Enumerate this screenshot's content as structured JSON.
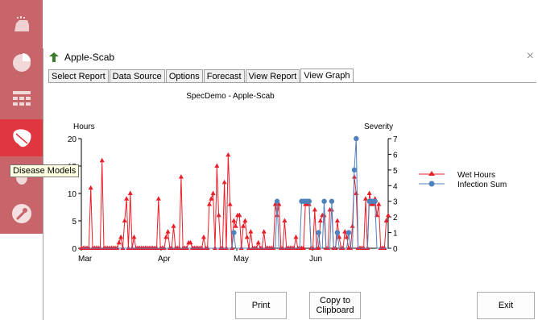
{
  "tooltip": "Disease Models",
  "window": {
    "title": "Apple-Scab",
    "close": "×",
    "tabs": [
      "Select Report",
      "Data Source",
      "Options",
      "Forecast",
      "View Report",
      "View Graph"
    ],
    "active_tab": "View Graph"
  },
  "buttons": {
    "print": "Print",
    "copy_line1": "Copy to",
    "copy_line2": "Clipboard",
    "exit": "Exit"
  },
  "colors": {
    "wet_hours": "#e8202a",
    "infection_sum": "#4f81bd",
    "sidebar": "#c8656a",
    "sidebar_active": "#e0363f"
  },
  "chart_data": {
    "type": "line",
    "title": "SpecDemo - Apple-Scab",
    "ylabel": "Hours",
    "y2label": "Severity",
    "ylim": [
      0,
      20
    ],
    "y2lim": [
      0,
      7
    ],
    "yticks": [
      0,
      5,
      10,
      15,
      20
    ],
    "y2ticks": [
      0,
      1,
      2,
      3,
      4,
      5,
      6,
      7
    ],
    "xticks": [
      "Mar",
      "Apr",
      "May",
      "Jun"
    ],
    "legend_position": "right",
    "series": [
      {
        "name": "Wet Hours",
        "axis": "left",
        "color": "#e8202a",
        "marker": "triangle",
        "values": [
          0,
          0,
          0,
          0,
          0,
          11,
          0,
          0,
          0,
          0,
          0,
          16,
          0,
          0,
          0,
          0,
          0,
          0,
          0,
          0,
          1,
          2,
          0,
          5,
          9,
          0,
          10,
          0,
          2,
          0,
          0,
          0,
          0,
          0,
          0,
          0,
          0,
          0,
          0,
          0,
          0,
          9,
          0,
          0,
          0,
          2,
          3,
          0,
          0,
          4,
          0,
          0,
          0,
          13,
          0,
          0,
          0,
          1,
          1,
          0,
          0,
          0,
          0,
          0,
          0,
          2,
          0,
          0,
          8,
          9,
          10,
          0,
          15,
          6,
          0,
          0,
          12,
          0,
          17,
          8,
          0,
          5,
          4,
          6,
          6,
          0,
          4,
          5,
          2,
          0,
          3,
          0,
          0,
          0,
          1,
          0,
          0,
          3,
          0,
          0,
          0,
          0,
          0,
          8,
          6,
          8,
          0,
          0,
          5,
          0,
          0,
          0,
          0,
          0,
          2,
          0,
          0,
          0,
          0,
          8,
          8,
          8,
          0,
          0,
          7,
          0,
          0,
          5,
          6,
          6,
          0,
          0,
          7,
          7,
          0,
          0,
          5,
          2,
          0,
          0,
          3,
          2,
          0,
          0,
          4,
          13,
          10,
          0,
          0,
          0,
          0,
          9,
          0,
          10,
          8,
          8,
          9,
          6,
          8,
          0,
          0,
          0,
          5,
          6
        ]
      },
      {
        "name": "Infection Sum",
        "axis": "right",
        "color": "#4f81bd",
        "marker": "circle",
        "values": [
          0,
          0,
          0,
          0,
          0,
          0,
          0,
          0,
          0,
          0,
          0,
          0,
          0,
          0,
          0,
          0,
          0,
          0,
          0,
          0,
          0,
          0,
          0,
          0,
          0,
          0,
          0,
          0,
          0,
          0,
          0,
          0,
          0,
          0,
          0,
          0,
          0,
          0,
          0,
          0,
          0,
          0,
          0,
          0,
          0,
          0,
          0,
          0,
          0,
          0,
          0,
          0,
          0,
          0,
          0,
          0,
          0,
          0,
          0,
          0,
          0,
          0,
          0,
          0,
          0,
          0,
          0,
          0,
          0,
          0,
          0,
          0,
          0,
          0,
          0,
          0,
          0,
          0,
          0,
          0,
          0,
          1,
          0,
          0,
          0,
          0,
          0,
          0,
          0,
          0,
          0,
          0,
          0,
          0,
          0,
          0,
          0,
          0,
          0,
          0,
          0,
          0,
          0,
          0,
          3,
          0,
          0,
          0,
          0,
          0,
          0,
          0,
          0,
          0,
          0,
          0,
          0,
          3,
          3,
          3,
          3,
          3,
          0,
          0,
          0,
          0,
          1,
          0,
          0,
          3,
          0,
          0,
          0,
          3,
          0,
          0,
          1,
          0,
          0,
          0,
          0,
          0,
          1,
          0,
          0,
          5,
          7,
          0,
          0,
          0,
          0,
          0,
          0,
          3,
          3,
          3,
          3,
          0,
          0,
          0,
          0,
          0,
          0,
          0
        ]
      }
    ]
  }
}
